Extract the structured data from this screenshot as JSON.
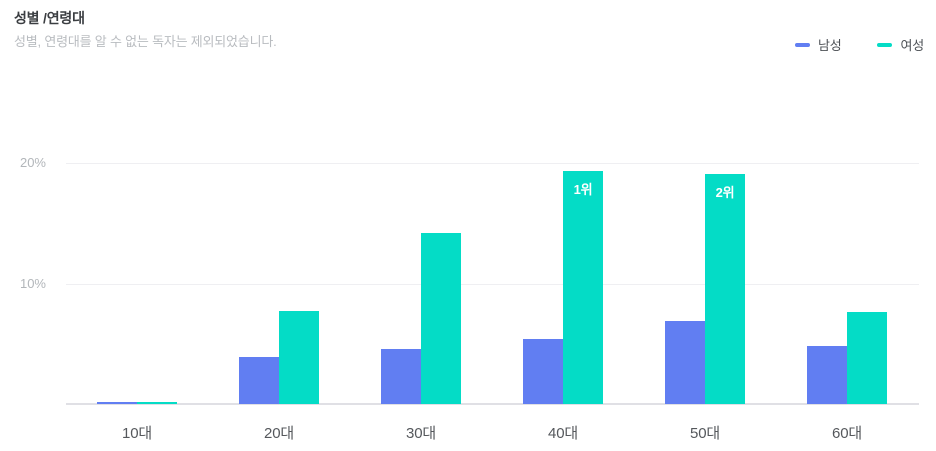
{
  "header": {
    "title": "성별 /연령대",
    "subtitle": "성별, 연령대를 알 수 없는 독자는 제외되었습니다."
  },
  "chart_data": {
    "type": "bar",
    "title": "성별 /연령대",
    "categories": [
      "10대",
      "20대",
      "30대",
      "40대",
      "50대",
      "60대"
    ],
    "series": [
      {
        "name": "남성",
        "color": "#617ef2",
        "values": [
          0.2,
          3.9,
          4.6,
          5.4,
          6.9,
          4.8
        ]
      },
      {
        "name": "여성",
        "color": "#04dcc6",
        "values": [
          0.2,
          7.7,
          14.2,
          19.3,
          19.1,
          7.6
        ]
      }
    ],
    "badges": [
      {
        "category_index": 3,
        "series_index": 1,
        "label": "1위"
      },
      {
        "category_index": 4,
        "series_index": 1,
        "label": "2위"
      }
    ],
    "yticks": [
      {
        "label": "10%",
        "value": 10
      },
      {
        "label": "20%",
        "value": 20
      }
    ],
    "ylim": [
      0,
      20
    ],
    "unit": "%",
    "grid": true,
    "legend_position": "top-right",
    "badge_text_color": "#ffffff"
  }
}
